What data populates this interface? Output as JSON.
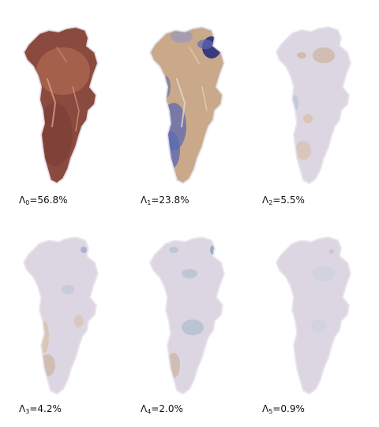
{
  "panels": [
    {
      "symbol": "Λ",
      "index": "0",
      "value": "=56.8%",
      "theme": "dominant"
    },
    {
      "symbol": "Λ",
      "index": "1",
      "value": "=23.8%",
      "theme": "bipolar"
    },
    {
      "symbol": "Λ",
      "index": "2",
      "value": "=5.5%",
      "theme": "faint-north"
    },
    {
      "symbol": "Λ",
      "index": "3",
      "value": "=4.2%",
      "theme": "faint-coast"
    },
    {
      "symbol": "Λ",
      "index": "4",
      "value": "=2.0%",
      "theme": "faint-mixed"
    },
    {
      "symbol": "Λ",
      "index": "5",
      "value": "=0.9%",
      "theme": "near-neutral"
    }
  ],
  "colors": {
    "neutral": "#dcd6e2",
    "dark_brown": "#8b4a3e",
    "mid_brown": "#b06a52",
    "tan": "#c9a98a",
    "light_tan": "#d8b99a",
    "blue": "#5c6ab0",
    "dark_blue": "#2a2f7a",
    "light_blue": "#a9bfd0",
    "teal": "#9fb6c7"
  }
}
